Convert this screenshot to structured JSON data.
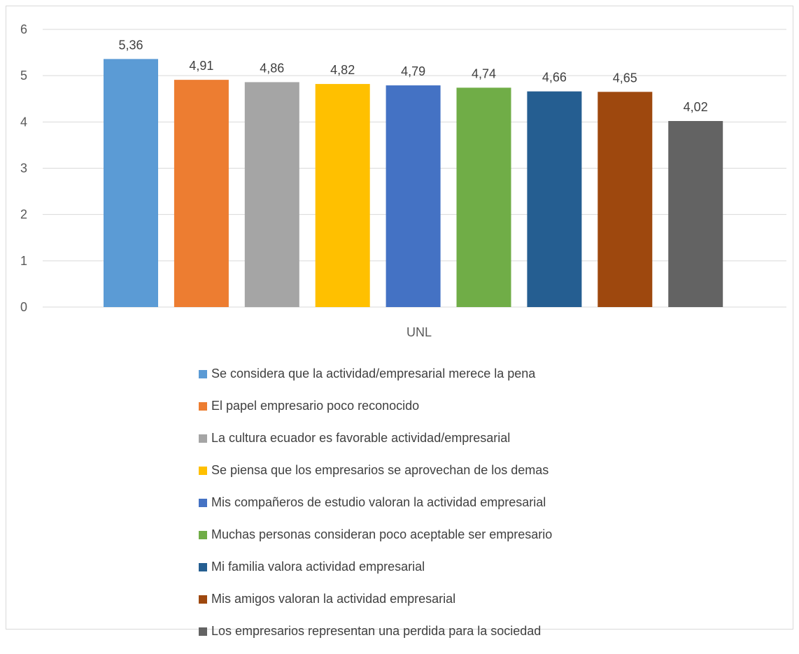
{
  "chart_data": {
    "type": "bar",
    "title": "",
    "xlabel": "",
    "ylabel": "",
    "categories": [
      "UNL"
    ],
    "ylim": [
      0,
      6
    ],
    "yticks": [
      "0",
      "1",
      "2",
      "3",
      "4",
      "5",
      "6"
    ],
    "grid": true,
    "legend_position": "bottom",
    "series": [
      {
        "name": "Se considera que la actividad/empresarial merece la pena",
        "values": [
          5.36
        ],
        "label": "5,36",
        "color": "#5B9BD5"
      },
      {
        "name": "El papel empresario poco reconocido",
        "values": [
          4.91
        ],
        "label": "4,91",
        "color": "#ED7D31"
      },
      {
        "name": "La cultura ecuador es favorable actividad/empresarial",
        "values": [
          4.86
        ],
        "label": "4,86",
        "color": "#A5A5A5"
      },
      {
        "name": "Se piensa que los empresarios se aprovechan de los demas",
        "values": [
          4.82
        ],
        "label": "4,82",
        "color": "#FFC000"
      },
      {
        "name": "Mis compañeros de estudio valoran la actividad empresarial",
        "values": [
          4.79
        ],
        "label": "4,79",
        "color": "#4472C4"
      },
      {
        "name": "Muchas personas consideran poco aceptable ser empresario",
        "values": [
          4.74
        ],
        "label": "4,74",
        "color": "#70AD47"
      },
      {
        "name": "Mi familia valora actividad empresarial",
        "values": [
          4.66
        ],
        "label": "4,66",
        "color": "#255E91"
      },
      {
        "name": "Mis amigos valoran la actividad empresarial",
        "values": [
          4.65
        ],
        "label": "4,65",
        "color": "#9E480E"
      },
      {
        "name": "Los empresarios representan una perdida para la sociedad",
        "values": [
          4.02
        ],
        "label": "4,02",
        "color": "#636363"
      }
    ]
  }
}
